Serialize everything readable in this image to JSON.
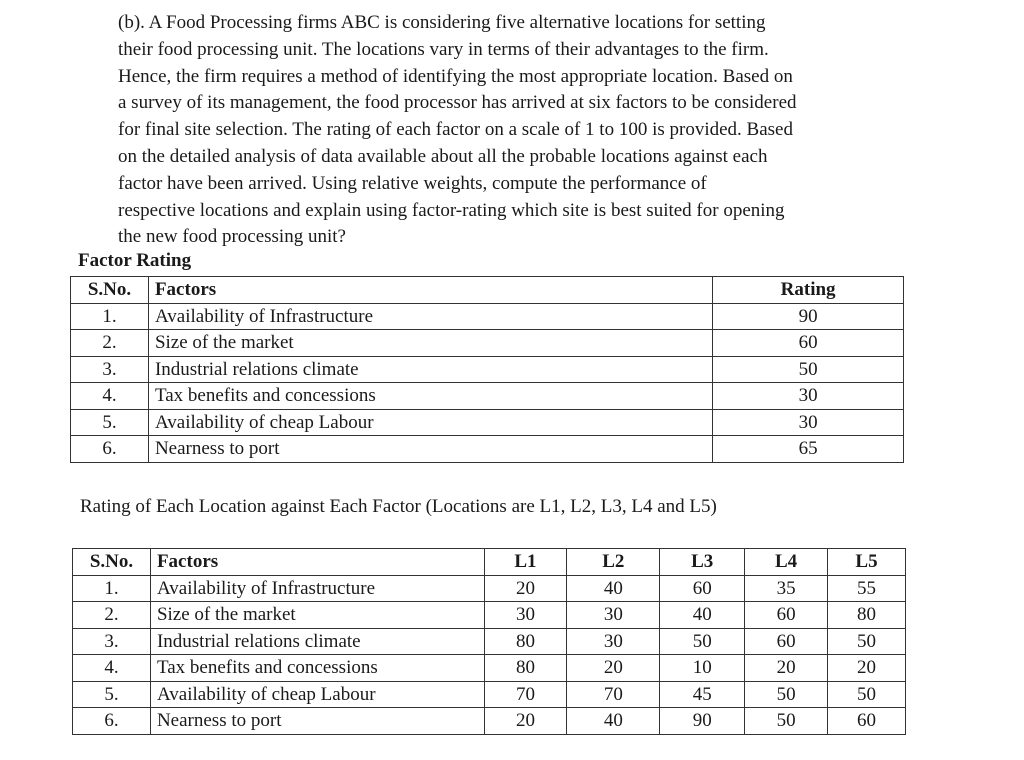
{
  "question": {
    "lines": [
      "(b). A Food Processing firms ABC is considering five alternative locations for setting",
      "their food processing unit. The locations vary in terms of their advantages to the firm.",
      "Hence, the firm requires a method of identifying the most appropriate location. Based on",
      "a survey of its management, the food processor has arrived at six factors to be considered",
      "for final site selection. The rating of each factor on a scale of 1 to 100 is provided. Based",
      "on the detailed analysis of data available about all the probable locations against each",
      "factor have been arrived. Using relative weights, compute the performance of",
      "respective locations and explain using factor-rating which site is best suited for opening",
      "the new food processing unit?"
    ]
  },
  "factor_table": {
    "heading": "Factor Rating",
    "headers": [
      "S.No.",
      "Factors",
      "Rating"
    ],
    "rows": [
      [
        "1.",
        "Availability of Infrastructure",
        "90"
      ],
      [
        "2.",
        "Size of the market",
        "60"
      ],
      [
        "3.",
        "Industrial relations climate",
        "50"
      ],
      [
        "4.",
        "Tax benefits and concessions",
        "30"
      ],
      [
        "5.",
        "Availability of cheap Labour",
        "30"
      ],
      [
        "6.",
        "Nearness to port",
        "65"
      ]
    ]
  },
  "location_table": {
    "caption": "Rating of Each Location against Each Factor (Locations are L1, L2, L3, L4 and L5)",
    "headers": [
      "S.No.",
      "Factors",
      "L1",
      "L2",
      "L3",
      "L4",
      "L5"
    ],
    "rows": [
      [
        "1.",
        "Availability of Infrastructure",
        "20",
        "40",
        "60",
        "35",
        "55"
      ],
      [
        "2.",
        "Size of the market",
        "30",
        "30",
        "40",
        "60",
        "80"
      ],
      [
        "3.",
        "Industrial relations climate",
        "80",
        "30",
        "50",
        "60",
        "50"
      ],
      [
        "4.",
        "Tax benefits and concessions",
        "80",
        "20",
        "10",
        "20",
        "20"
      ],
      [
        "5.",
        "Availability of cheap Labour",
        "70",
        "70",
        "45",
        "50",
        "50"
      ],
      [
        "6.",
        "Nearness to port",
        "20",
        "40",
        "90",
        "50",
        "60"
      ]
    ]
  }
}
